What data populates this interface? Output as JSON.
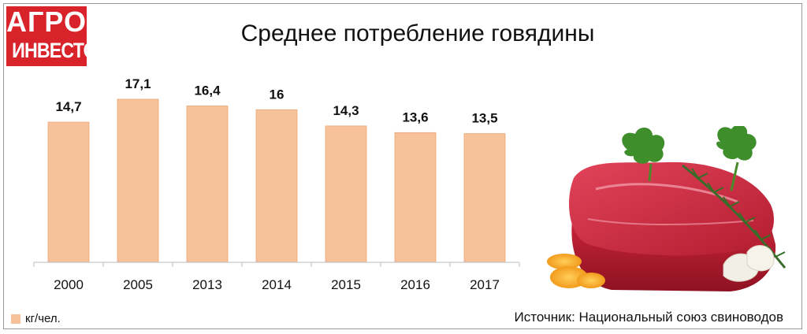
{
  "logo": {
    "line1": "АГРО",
    "line2": "ИНВЕСТОР"
  },
  "header": {
    "title": "Среднее потребление говядины"
  },
  "legend": {
    "label": "кг/чел."
  },
  "source": "Источник: Национальный союз свиноводов",
  "colors": {
    "bar": "#f7c29a",
    "bar_edge": "#e8a878",
    "brand": "#d8232a"
  },
  "image": {
    "icon": "beef-meat-illustration"
  },
  "chart_data": {
    "type": "bar",
    "title": "Среднее потребление говядины",
    "categories": [
      "2000",
      "2005",
      "2013",
      "2014",
      "2015",
      "2016",
      "2017"
    ],
    "values": [
      14.7,
      17.1,
      16.4,
      16,
      14.3,
      13.6,
      13.5
    ],
    "value_labels": [
      "14,7",
      "17,1",
      "16,4",
      "16",
      "14,3",
      "13,6",
      "13,5"
    ],
    "series": [
      {
        "name": "кг/чел.",
        "values": [
          14.7,
          17.1,
          16.4,
          16,
          14.3,
          13.6,
          13.5
        ]
      }
    ],
    "ylim": [
      0,
      17.1
    ],
    "grid": false,
    "legend_position": "bottom-left"
  }
}
